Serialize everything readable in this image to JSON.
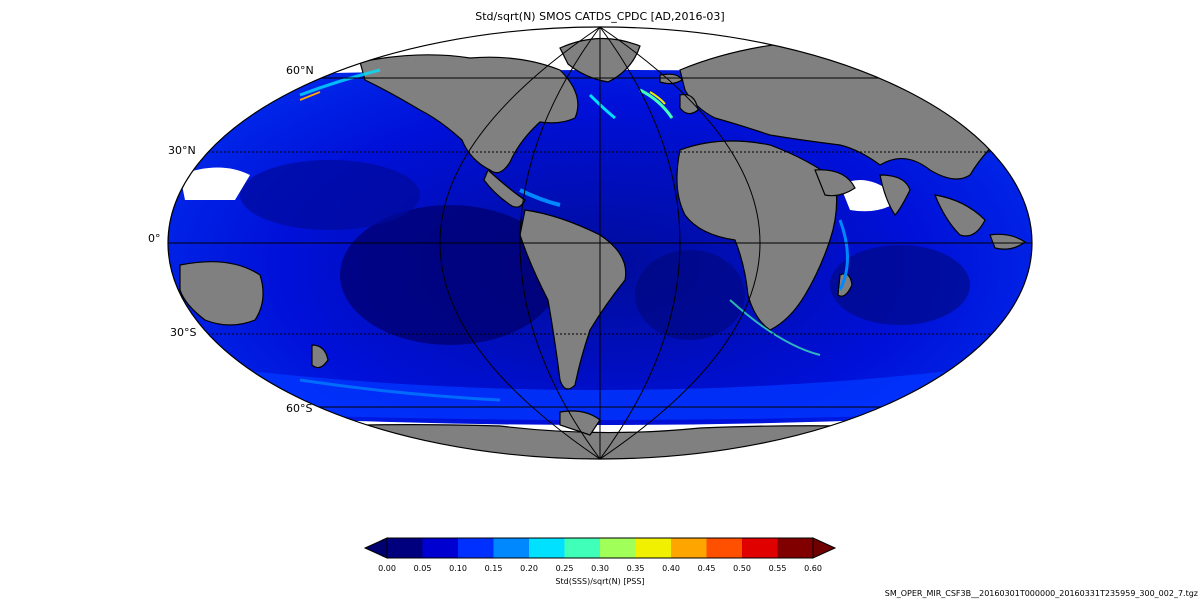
{
  "title": "Std/sqrt(N) SMOS CATDS_CPDC [AD,2016-03]",
  "projection": "mollweide",
  "colors": {
    "land": "#808080",
    "coastline": "#000000",
    "no_data": "#ffffff",
    "grid": "#000000"
  },
  "lat_labels": [
    {
      "lat": 60,
      "text": "60°N"
    },
    {
      "lat": 30,
      "text": "30°N"
    },
    {
      "lat": 0,
      "text": "0°"
    },
    {
      "lat": -30,
      "text": "30°S"
    },
    {
      "lat": -60,
      "text": "60°S"
    }
  ],
  "colorbar": {
    "label": "Std(SSS)/sqrt(N) [PSS]",
    "ticks": [
      "0.00",
      "0.05",
      "0.10",
      "0.15",
      "0.20",
      "0.25",
      "0.30",
      "0.35",
      "0.40",
      "0.45",
      "0.50",
      "0.55",
      "0.60"
    ],
    "colors": [
      "#00007f",
      "#0000d0",
      "#0030ff",
      "#0088ff",
      "#00e0ff",
      "#40ffb8",
      "#a0ff58",
      "#f0f000",
      "#ffa500",
      "#ff5000",
      "#e00000",
      "#800000"
    ],
    "extend_low_color": "#000070",
    "extend_high_color": "#700000"
  },
  "filename": "SM_OPER_MIR_CSF3B__20160301T000000_20160331T235959_300_002_7.tgz"
}
